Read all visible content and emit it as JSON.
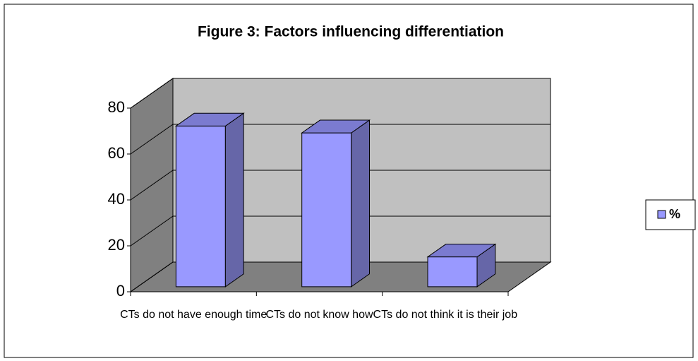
{
  "chart_data": {
    "type": "bar3d",
    "title": "Figure 3: Factors influencing differentiation",
    "categories": [
      "CTs do not have enough time",
      "CTs do not know how",
      "CTs do not think it is their job"
    ],
    "series": [
      {
        "name": "%",
        "color": "#9999ff",
        "values": [
          70,
          67,
          13
        ]
      }
    ],
    "ylim": [
      0,
      80
    ],
    "yticks": [
      0,
      20,
      40,
      60,
      80
    ],
    "grid": true,
    "legend": "right"
  }
}
